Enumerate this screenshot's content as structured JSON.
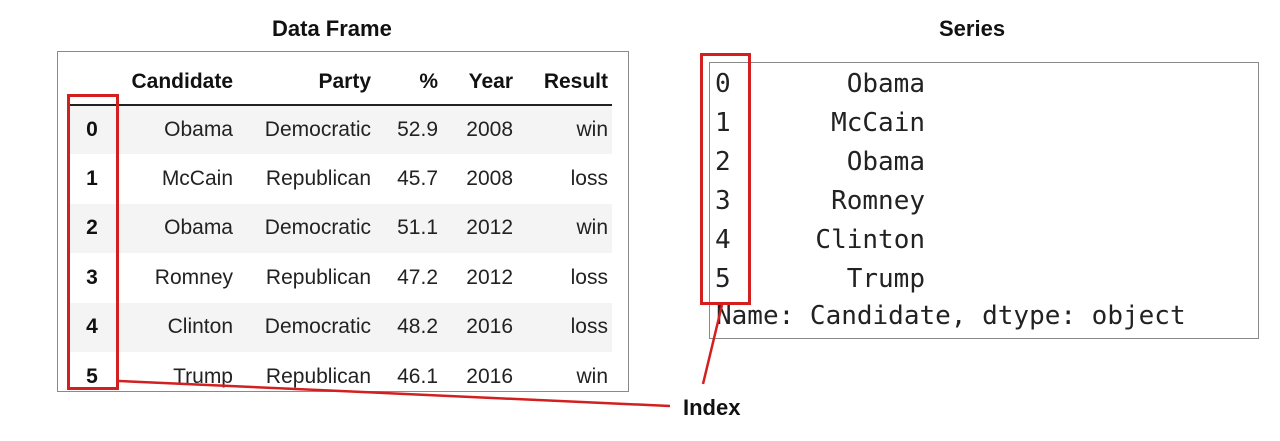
{
  "dataframe": {
    "title": "Data Frame",
    "columns": [
      "Candidate",
      "Party",
      "%",
      "Year",
      "Result"
    ],
    "rows": [
      {
        "index": "0",
        "candidate": "Obama",
        "party": "Democratic",
        "pct": "52.9",
        "year": "2008",
        "result": "win"
      },
      {
        "index": "1",
        "candidate": "McCain",
        "party": "Republican",
        "pct": "45.7",
        "year": "2008",
        "result": "loss"
      },
      {
        "index": "2",
        "candidate": "Obama",
        "party": "Democratic",
        "pct": "51.1",
        "year": "2012",
        "result": "win"
      },
      {
        "index": "3",
        "candidate": "Romney",
        "party": "Republican",
        "pct": "47.2",
        "year": "2012",
        "result": "loss"
      },
      {
        "index": "4",
        "candidate": "Clinton",
        "party": "Democratic",
        "pct": "48.2",
        "year": "2016",
        "result": "loss"
      },
      {
        "index": "5",
        "candidate": "Trump",
        "party": "Republican",
        "pct": "46.1",
        "year": "2016",
        "result": "win"
      }
    ]
  },
  "series": {
    "title": "Series",
    "rows": [
      {
        "index": "0",
        "value": "Obama"
      },
      {
        "index": "1",
        "value": "McCain"
      },
      {
        "index": "2",
        "value": "Obama"
      },
      {
        "index": "3",
        "value": "Romney"
      },
      {
        "index": "4",
        "value": "Clinton"
      },
      {
        "index": "5",
        "value": "Trump"
      }
    ],
    "footer": "Name: Candidate, dtype: object"
  },
  "annotation": {
    "label": "Index",
    "highlight_color": "#d21f1f"
  }
}
